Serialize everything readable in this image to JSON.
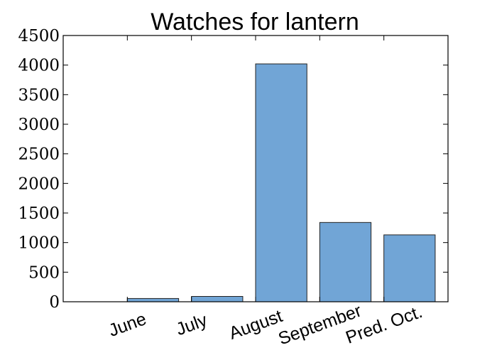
{
  "chart_data": {
    "type": "bar",
    "title": "Watches for lantern",
    "xlabel": "",
    "ylabel": "",
    "categories": [
      "June",
      "July",
      "August",
      "September",
      "Pred. Oct."
    ],
    "values": [
      55,
      90,
      4020,
      1340,
      1130
    ],
    "ylim": [
      0,
      4500
    ],
    "yticks": [
      0,
      500,
      1000,
      1500,
      2000,
      2500,
      3000,
      3500,
      4000,
      4500
    ],
    "ytick_labels": [
      "0",
      "500",
      "1000",
      "1500",
      "2000",
      "2500",
      "3000",
      "3500",
      "4000",
      "4500"
    ],
    "xlim": [
      -1,
      5
    ],
    "grid": false,
    "legend": "none",
    "bar_color": "#71a5d6",
    "edge_color": "#222222"
  }
}
